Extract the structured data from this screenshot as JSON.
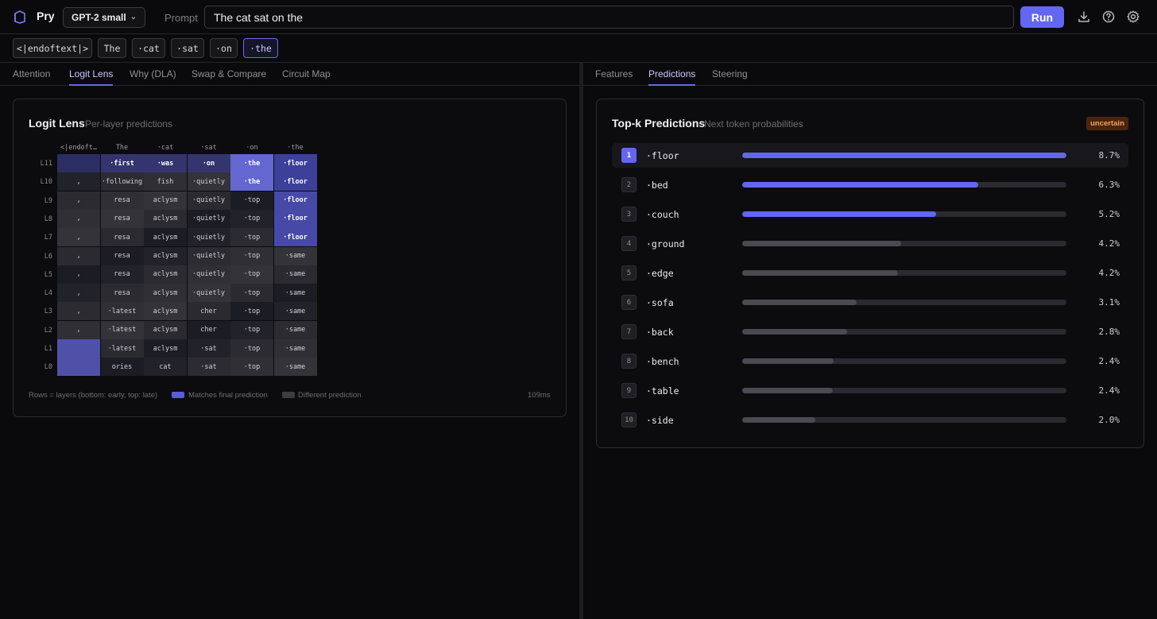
{
  "app": {
    "name": "Pry",
    "model": "GPT-2 small",
    "prompt_label": "Prompt",
    "prompt_value": "The cat sat on the",
    "run_label": "Run"
  },
  "tokens": [
    "<|endoftext|>",
    "The",
    "·cat",
    "·sat",
    "·on",
    "·the"
  ],
  "active_token_index": 5,
  "left_tabs": [
    "Attention",
    "Logit Lens",
    "Why (DLA)",
    "Swap & Compare",
    "Circuit Map"
  ],
  "left_active_tab": 1,
  "right_tabs": [
    "Features",
    "Predictions",
    "Steering"
  ],
  "right_active_tab": 1,
  "logit_lens": {
    "title": "Logit Lens",
    "subtitle": "Per-layer predictions",
    "columns": [
      "<|endoft…",
      "The",
      "·cat",
      "·sat",
      "·on",
      "·the"
    ],
    "rows": [
      {
        "layer": "L11",
        "cells": [
          "",
          "·first",
          "·was",
          "·on",
          "·the",
          "·floor"
        ],
        "match": [
          1,
          1,
          1,
          1,
          1,
          1
        ]
      },
      {
        "layer": "L10",
        "cells": [
          ",",
          "·following",
          "fish",
          "·quietly",
          "·the",
          "·floor"
        ],
        "match": [
          0,
          0,
          0,
          0,
          1,
          1
        ]
      },
      {
        "layer": "L9",
        "cells": [
          ",",
          "resa",
          "aclysm",
          "·quietly",
          "·top",
          "·floor"
        ],
        "match": [
          0,
          0,
          0,
          0,
          0,
          1
        ]
      },
      {
        "layer": "L8",
        "cells": [
          ",",
          "resa",
          "aclysm",
          "·quietly",
          "·top",
          "·floor"
        ],
        "match": [
          0,
          0,
          0,
          0,
          0,
          1
        ]
      },
      {
        "layer": "L7",
        "cells": [
          ",",
          "resa",
          "aclysm",
          "·quietly",
          "·top",
          "·floor"
        ],
        "match": [
          0,
          0,
          0,
          0,
          0,
          1
        ]
      },
      {
        "layer": "L6",
        "cells": [
          ",",
          "resa",
          "aclysm",
          "·quietly",
          "·top",
          "·same"
        ],
        "match": [
          0,
          0,
          0,
          0,
          0,
          0
        ]
      },
      {
        "layer": "L5",
        "cells": [
          ",",
          "resa",
          "aclysm",
          "·quietly",
          "·top",
          "·same"
        ],
        "match": [
          0,
          0,
          0,
          0,
          0,
          0
        ]
      },
      {
        "layer": "L4",
        "cells": [
          ",",
          "resa",
          "aclysm",
          "·quietly",
          "·top",
          "·same"
        ],
        "match": [
          0,
          0,
          0,
          0,
          0,
          0
        ]
      },
      {
        "layer": "L3",
        "cells": [
          ",",
          "·latest",
          "aclysm",
          "cher",
          "·top",
          "·same"
        ],
        "match": [
          0,
          0,
          0,
          0,
          0,
          0
        ]
      },
      {
        "layer": "L2",
        "cells": [
          ",",
          "·latest",
          "aclysm",
          "cher",
          "·top",
          "·same"
        ],
        "match": [
          0,
          0,
          0,
          0,
          0,
          0
        ]
      },
      {
        "layer": "L1",
        "cells": [
          "",
          "·latest",
          "aclysm",
          "·sat",
          "·top",
          "·same"
        ],
        "match": [
          1,
          0,
          0,
          0,
          0,
          0
        ]
      },
      {
        "layer": "L0",
        "cells": [
          "",
          "ories",
          "cat",
          "·sat",
          "·top",
          "·same"
        ],
        "match": [
          1,
          0,
          0,
          0,
          0,
          0
        ]
      }
    ],
    "legend_rows": "Rows = layers (bottom: early, top: late)",
    "legend_match": "Matches final prediction",
    "legend_diff": "Different prediction",
    "timing": "109ms"
  },
  "predictions": {
    "title": "Top-k Predictions",
    "subtitle": "Next token probabilities",
    "badge": "uncertain",
    "items": [
      {
        "rank": "1",
        "token": "·floor",
        "pct": "8.7%",
        "fill": 1.0
      },
      {
        "rank": "2",
        "token": "·bed",
        "pct": "6.3%",
        "fill": 0.728
      },
      {
        "rank": "3",
        "token": "·couch",
        "pct": "5.2%",
        "fill": 0.598
      },
      {
        "rank": "4",
        "token": "·ground",
        "pct": "4.2%",
        "fill": 0.49
      },
      {
        "rank": "5",
        "token": "·edge",
        "pct": "4.2%",
        "fill": 0.48
      },
      {
        "rank": "6",
        "token": "·sofa",
        "pct": "3.1%",
        "fill": 0.353
      },
      {
        "rank": "7",
        "token": "·back",
        "pct": "2.8%",
        "fill": 0.324
      },
      {
        "rank": "8",
        "token": "·bench",
        "pct": "2.4%",
        "fill": 0.282
      },
      {
        "rank": "9",
        "token": "·table",
        "pct": "2.4%",
        "fill": 0.28
      },
      {
        "rank": "10",
        "token": "·side",
        "pct": "2.0%",
        "fill": 0.226
      }
    ]
  },
  "colors": {
    "accent": "#6366f1",
    "bar_muted": "#4a4a52",
    "badge_text": "#f0a35a"
  }
}
